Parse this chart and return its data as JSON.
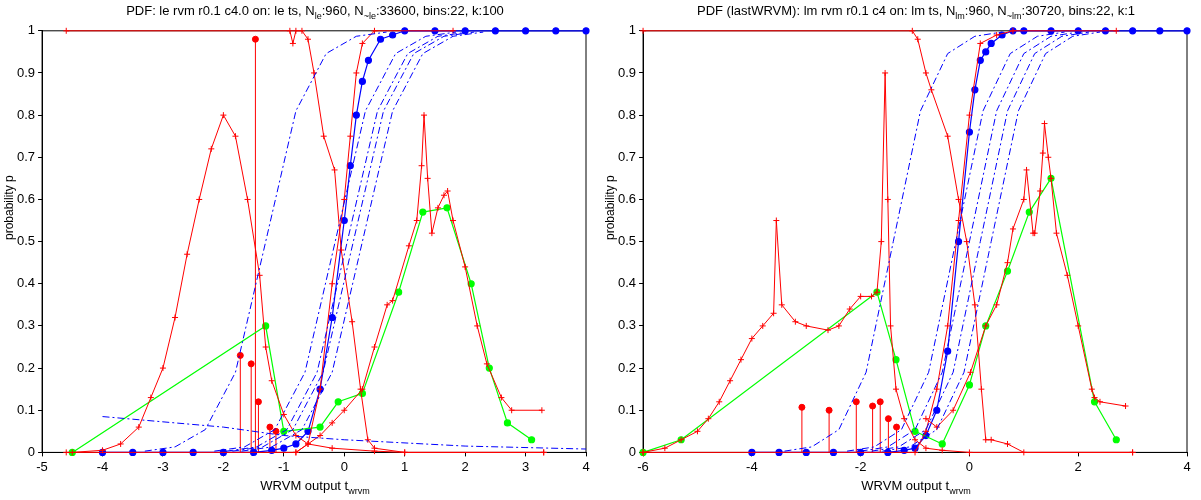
{
  "chart_data": [
    {
      "type": "line",
      "title": "PDF: le rvm r0.1 c4.0  on: le ts, N$_{le}$:960, N$_{~le}$:33600, bins:22, k:100",
      "xlabel": "WRVM output t$_{wrvm}$",
      "ylabel": "probability p",
      "xlim": [
        -5,
        4
      ],
      "xticks": [
        -5,
        -4,
        -3,
        -2,
        -1,
        0,
        1,
        2,
        3,
        4
      ],
      "ylim": [
        0,
        1
      ],
      "yticks": [
        0,
        0.1,
        0.2,
        0.3,
        0.4,
        0.5,
        0.6,
        0.7,
        0.8,
        0.9,
        1
      ],
      "series": [
        {
          "type": "line",
          "color": "#0000ff",
          "marker": "none",
          "line_style": "dashed",
          "x": [
            -3.3,
            -2.8,
            -2.3,
            -1.8,
            -1.3,
            -0.8,
            -0.3,
            0.2,
            0.7
          ],
          "values": [
            0.003,
            0.013,
            0.054,
            0.19,
            0.5,
            0.81,
            0.946,
            0.987,
            0.997
          ]
        },
        {
          "type": "line",
          "color": "#0000ff",
          "marker": "none",
          "line_style": "dashed",
          "x": [
            -2.15,
            -1.65,
            -1.15,
            -0.65,
            -0.15,
            0.35,
            0.85,
            1.35,
            1.85
          ],
          "values": [
            0.003,
            0.013,
            0.054,
            0.19,
            0.5,
            0.81,
            0.946,
            0.987,
            0.997
          ]
        },
        {
          "type": "line",
          "color": "#0000ff",
          "marker": "none",
          "line_style": "dashed",
          "x": [
            -1.95,
            -1.45,
            -0.95,
            -0.45,
            0.05,
            0.55,
            1.05,
            1.55,
            2.05
          ],
          "values": [
            0.003,
            0.013,
            0.054,
            0.19,
            0.5,
            0.81,
            0.946,
            0.987,
            0.997
          ]
        },
        {
          "type": "line",
          "color": "#0000ff",
          "marker": "none",
          "line_style": "dashed",
          "x": [
            -1.85,
            -1.35,
            -0.85,
            -0.35,
            0.15,
            0.65,
            1.15,
            1.65,
            2.15
          ],
          "values": [
            0.003,
            0.013,
            0.054,
            0.19,
            0.5,
            0.81,
            0.946,
            0.987,
            0.997
          ]
        },
        {
          "type": "line",
          "color": "#0000ff",
          "marker": "none",
          "line_style": "dashed",
          "x": [
            -1.7,
            -1.2,
            -0.7,
            -0.2,
            0.3,
            0.8,
            1.3,
            1.8,
            2.3
          ],
          "values": [
            0.003,
            0.013,
            0.054,
            0.19,
            0.5,
            0.81,
            0.946,
            0.987,
            0.997
          ]
        },
        {
          "type": "line",
          "color": "#0000ff",
          "marker": "none",
          "line_style": "dashed",
          "x": [
            -4,
            -2,
            -1,
            0,
            2,
            4
          ],
          "values": [
            0.085,
            0.06,
            0.04,
            0.03,
            0.015,
            0.008
          ]
        },
        {
          "type": "line",
          "color": "#ff0000",
          "marker": "cross",
          "x": [
            -4.5,
            -4,
            -3.7,
            -3.4,
            -3.2,
            -3,
            -2.8,
            -2.6,
            -2.4,
            -2.2,
            -2,
            -1.8,
            -1.6,
            -1.4,
            -1.3,
            -1.2,
            -1,
            -0.8,
            -0.6,
            -0.2,
            0.5,
            1,
            3.3
          ],
          "values": [
            0,
            0.005,
            0.02,
            0.06,
            0.13,
            0.2,
            0.32,
            0.47,
            0.6,
            0.72,
            0.8,
            0.75,
            0.6,
            0.42,
            0.25,
            0.17,
            0.09,
            0.04,
            0.02,
            0.01,
            0.003,
            0,
            0
          ]
        },
        {
          "type": "line",
          "color": "#ff0000",
          "marker": "cross",
          "x": [
            -4.6,
            -0.9,
            -0.85,
            -0.8,
            -0.7,
            -0.6,
            -0.5,
            -0.34,
            -0.16,
            -0.05,
            0.13,
            0.27,
            0.39,
            0.5,
            1,
            3.3
          ],
          "values": [
            1,
            1,
            0.97,
            1,
            1,
            0.98,
            0.9,
            0.75,
            0.67,
            0.48,
            0.31,
            0.15,
            0.03,
            0.01,
            0,
            0
          ]
        },
        {
          "type": "line",
          "color": "#ff0000",
          "marker": "cross",
          "x": [
            -4.6,
            -0.8,
            -0.6,
            -0.4,
            -0.2,
            0,
            0.1,
            0.2,
            0.3,
            0.5,
            1.8
          ],
          "values": [
            0,
            0,
            0.02,
            0.15,
            0.4,
            0.6,
            0.75,
            0.9,
            0.97,
            1,
            1
          ]
        },
        {
          "type": "line",
          "color": "#ff0000",
          "marker": "cross",
          "x": [
            -0.8,
            -0.4,
            -0.2,
            0,
            0.3,
            0.5,
            0.71,
            0.8,
            1.07,
            1.2,
            1.28,
            1.32,
            1.38,
            1.45,
            1.55,
            1.65,
            1.71,
            1.8,
            2.0,
            2.2,
            2.36,
            2.6,
            2.77,
            3.27
          ],
          "values": [
            0,
            0.04,
            0.07,
            0.1,
            0.15,
            0.25,
            0.35,
            0.36,
            0.49,
            0.55,
            0.68,
            0.8,
            0.65,
            0.52,
            0.58,
            0.61,
            0.62,
            0.55,
            0.44,
            0.3,
            0.21,
            0.13,
            0.1,
            0.1
          ]
        },
        {
          "type": "line",
          "color": "#00ff00",
          "marker": "circle",
          "x": [
            -4.5,
            -1.3,
            -1.0,
            -0.4,
            -0.1,
            0.3,
            0.9,
            1.3,
            1.7,
            2.1,
            2.4,
            2.7,
            3.1
          ],
          "values": [
            0,
            0.3,
            0.05,
            0.06,
            0.12,
            0.14,
            0.38,
            0.57,
            0.58,
            0.4,
            0.2,
            0.07,
            0.03
          ]
        },
        {
          "type": "line",
          "color": "#0000ff",
          "marker": "circle",
          "x": [
            -4,
            -3.5,
            -3,
            -2.5,
            -2,
            -1.5,
            -1.2,
            -1,
            -0.8,
            -0.6,
            -0.4,
            -0.2,
            0,
            0.1,
            0.2,
            0.3,
            0.4,
            0.6,
            0.8,
            1,
            1.5,
            2,
            2.5,
            3,
            3.5,
            4
          ],
          "values": [
            0,
            0,
            0,
            0,
            0,
            0,
            0.005,
            0.01,
            0.02,
            0.05,
            0.15,
            0.32,
            0.55,
            0.68,
            0.8,
            0.88,
            0.93,
            0.98,
            0.99,
            1,
            1,
            1,
            1,
            1,
            1,
            1
          ]
        },
        {
          "type": "lollipop",
          "color": "#ff0000",
          "marker": "circle",
          "x": [
            -1.72,
            -1.54,
            -1.47,
            -1.42,
            -1.23,
            -1.13
          ],
          "values": [
            0.23,
            0.21,
            0.98,
            0.12,
            0.06,
            0.05
          ]
        }
      ]
    },
    {
      "type": "line",
      "title": "PDF (lastWRVM): lm rvm r0.1 c4  on: lm ts, N$_{lm}$:960, N$_{~lm}$:30720, bins:22, k:1",
      "xlabel": "WRVM output t$_{wrvm}$",
      "ylabel": "probability p",
      "xlim": [
        -6,
        4
      ],
      "xticks": [
        -6,
        -4,
        -2,
        0,
        2,
        4
      ],
      "ylim": [
        0,
        1
      ],
      "yticks": [
        0,
        0.1,
        0.2,
        0.3,
        0.4,
        0.5,
        0.6,
        0.7,
        0.8,
        0.9,
        1
      ],
      "series": [
        {
          "type": "line",
          "color": "#0000ff",
          "marker": "none",
          "line_style": "dashed",
          "x": [
            -3.4,
            -2.9,
            -2.4,
            -1.9,
            -1.4,
            -0.9,
            -0.4,
            0.1,
            0.6
          ],
          "values": [
            0.003,
            0.013,
            0.054,
            0.19,
            0.5,
            0.81,
            0.946,
            0.987,
            0.997
          ]
        },
        {
          "type": "line",
          "color": "#0000ff",
          "marker": "none",
          "line_style": "dashed",
          "x": [
            -2.25,
            -1.75,
            -1.25,
            -0.75,
            -0.25,
            0.25,
            0.75,
            1.25,
            1.75
          ],
          "values": [
            0.003,
            0.013,
            0.054,
            0.19,
            0.5,
            0.81,
            0.946,
            0.987,
            0.997
          ]
        },
        {
          "type": "line",
          "color": "#0000ff",
          "marker": "none",
          "line_style": "dashed",
          "x": [
            -2,
            -1.5,
            -1,
            -0.5,
            0,
            0.5,
            1,
            1.5,
            2
          ],
          "values": [
            0.003,
            0.013,
            0.054,
            0.19,
            0.5,
            0.81,
            0.946,
            0.987,
            0.997
          ]
        },
        {
          "type": "line",
          "color": "#0000ff",
          "marker": "none",
          "line_style": "dashed",
          "x": [
            -1.8,
            -1.3,
            -0.8,
            -0.3,
            0.2,
            0.7,
            1.2,
            1.7,
            2.2
          ],
          "values": [
            0.003,
            0.013,
            0.054,
            0.19,
            0.5,
            0.81,
            0.946,
            0.987,
            0.997
          ]
        },
        {
          "type": "line",
          "color": "#0000ff",
          "marker": "none",
          "line_style": "dashed",
          "x": [
            -1.6,
            -1.1,
            -0.6,
            -0.1,
            0.4,
            0.9,
            1.4,
            1.9,
            2.4
          ],
          "values": [
            0.003,
            0.013,
            0.054,
            0.19,
            0.5,
            0.81,
            0.946,
            0.987,
            0.997
          ]
        },
        {
          "type": "line",
          "color": "#ff0000",
          "marker": "cross",
          "x": [
            -6,
            -5.6,
            -5.3,
            -5,
            -4.8,
            -4.6,
            -4.4,
            -4.2,
            -4,
            -3.8,
            -3.6,
            -3.55,
            -3.45,
            -3.2,
            -3,
            -2.6,
            -2.4,
            -2.2,
            -2,
            -1.8,
            -1.7,
            -1.62,
            -1.55,
            -1.5,
            -1.45,
            -1.35,
            -1.2,
            -1,
            -0.8,
            -0.5,
            0,
            3
          ],
          "values": [
            0,
            0.01,
            0.03,
            0.05,
            0.08,
            0.12,
            0.17,
            0.22,
            0.27,
            0.3,
            0.33,
            0.55,
            0.35,
            0.31,
            0.3,
            0.29,
            0.3,
            0.34,
            0.37,
            0.37,
            0.38,
            0.5,
            0.9,
            0.6,
            0.3,
            0.15,
            0.08,
            0.03,
            0.01,
            0.005,
            0,
            0
          ]
        },
        {
          "type": "line",
          "color": "#ff0000",
          "marker": "cross",
          "x": [
            -6,
            -1.05,
            -0.95,
            -0.8,
            -0.7,
            -0.4,
            -0.2,
            -0.05,
            0.1,
            0.22,
            0.3,
            0.4,
            0.7,
            1,
            3
          ],
          "values": [
            1,
            1,
            0.98,
            0.9,
            0.86,
            0.75,
            0.6,
            0.5,
            0.35,
            0.15,
            0.03,
            0.03,
            0.02,
            0,
            0
          ]
        },
        {
          "type": "line",
          "color": "#ff0000",
          "marker": "cross",
          "x": [
            -6,
            -1,
            -0.8,
            -0.6,
            -0.4,
            -0.2,
            0,
            0.2,
            0.5,
            0.8,
            2.7
          ],
          "values": [
            0,
            0,
            0.05,
            0.15,
            0.3,
            0.55,
            0.8,
            0.97,
            0.99,
            1,
            1
          ]
        },
        {
          "type": "line",
          "color": "#ff0000",
          "marker": "cross",
          "x": [
            -0.8,
            -0.6,
            -0.3,
            0.02,
            0.3,
            0.5,
            0.7,
            0.8,
            1.0,
            1.05,
            1.17,
            1.2,
            1.3,
            1.35,
            1.38,
            1.45,
            1.5,
            1.6,
            1.8,
            2.0,
            2.25,
            2.3,
            2.4,
            2.87
          ],
          "values": [
            0.08,
            0.06,
            0.1,
            0.19,
            0.3,
            0.35,
            0.45,
            0.53,
            0.6,
            0.67,
            0.52,
            0.52,
            0.62,
            0.71,
            0.78,
            0.7,
            0.65,
            0.52,
            0.42,
            0.3,
            0.15,
            0.13,
            0.12,
            0.11
          ]
        },
        {
          "type": "line",
          "color": "#00ff00",
          "marker": "circle",
          "x": [
            -6,
            -5.3,
            -1.7,
            -1.35,
            -1.0,
            -0.5,
            0,
            0.3,
            0.7,
            1.1,
            1.5,
            2.3,
            2.7
          ],
          "values": [
            0,
            0.03,
            0.38,
            0.22,
            0.05,
            0.02,
            0.16,
            0.3,
            0.43,
            0.57,
            0.65,
            0.12,
            0.03
          ]
        },
        {
          "type": "line",
          "color": "#0000ff",
          "marker": "circle",
          "x": [
            -4,
            -3.5,
            -3,
            -2.5,
            -2,
            -1.5,
            -1.2,
            -1,
            -0.8,
            -0.6,
            -0.4,
            -0.2,
            0,
            0.1,
            0.2,
            0.3,
            0.4,
            0.6,
            0.8,
            1,
            1.5,
            2,
            2.5,
            3,
            3.5,
            4
          ],
          "values": [
            0,
            0,
            0,
            0,
            0,
            0,
            0.005,
            0.01,
            0.04,
            0.1,
            0.24,
            0.5,
            0.76,
            0.86,
            0.93,
            0.95,
            0.97,
            0.99,
            1,
            1,
            1,
            1,
            1,
            1,
            1,
            1
          ]
        },
        {
          "type": "lollipop",
          "color": "#ff0000",
          "marker": "circle",
          "x": [
            -3.08,
            -2.58,
            -2.08,
            -1.78,
            -1.64,
            -1.49,
            -1.34
          ],
          "values": [
            0.107,
            0.1,
            0.12,
            0.11,
            0.12,
            0.08,
            0.06
          ]
        }
      ]
    }
  ]
}
